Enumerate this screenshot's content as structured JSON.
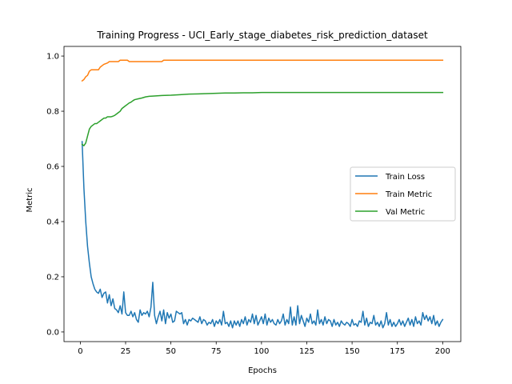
{
  "chart_data": {
    "type": "line",
    "title": "Training Progress - UCI_Early_stage_diabetes_risk_prediction_dataset",
    "xlabel": "Epochs",
    "ylabel": "Metric",
    "xlim": [
      -9,
      210
    ],
    "ylim": [
      -0.035,
      1.035
    ],
    "xticks": [
      0,
      25,
      50,
      75,
      100,
      125,
      150,
      175,
      200
    ],
    "yticks": [
      0.0,
      0.2,
      0.4,
      0.6,
      0.8,
      1.0
    ],
    "ytick_labels": [
      "0.0",
      "0.2",
      "0.4",
      "0.6",
      "0.8",
      "1.0"
    ],
    "grid": false,
    "legend_position": "center-right",
    "series": [
      {
        "name": "Train Loss",
        "color": "#1f77b4",
        "points": [
          [
            1,
            0.69
          ],
          [
            2,
            0.52
          ],
          [
            3,
            0.4
          ],
          [
            4,
            0.31
          ],
          [
            5,
            0.25
          ],
          [
            6,
            0.2
          ],
          [
            7,
            0.175
          ],
          [
            8,
            0.155
          ],
          [
            9,
            0.145
          ],
          [
            10,
            0.14
          ],
          [
            11,
            0.155
          ],
          [
            12,
            0.125
          ],
          [
            13,
            0.14
          ],
          [
            14,
            0.145
          ],
          [
            15,
            0.105
          ],
          [
            16,
            0.135
          ],
          [
            17,
            0.095
          ],
          [
            18,
            0.12
          ],
          [
            19,
            0.085
          ],
          [
            20,
            0.08
          ],
          [
            21,
            0.07
          ],
          [
            22,
            0.095
          ],
          [
            23,
            0.065
          ],
          [
            24,
            0.145
          ],
          [
            25,
            0.07
          ],
          [
            26,
            0.06
          ],
          [
            27,
            0.06
          ],
          [
            28,
            0.075
          ],
          [
            29,
            0.055
          ],
          [
            30,
            0.07
          ],
          [
            31,
            0.045
          ],
          [
            32,
            0.035
          ],
          [
            33,
            0.08
          ],
          [
            34,
            0.06
          ],
          [
            35,
            0.07
          ],
          [
            36,
            0.065
          ],
          [
            37,
            0.075
          ],
          [
            38,
            0.055
          ],
          [
            39,
            0.09
          ],
          [
            40,
            0.18
          ],
          [
            41,
            0.06
          ],
          [
            42,
            0.03
          ],
          [
            43,
            0.055
          ],
          [
            44,
            0.075
          ],
          [
            45,
            0.04
          ],
          [
            46,
            0.08
          ],
          [
            47,
            0.03
          ],
          [
            48,
            0.07
          ],
          [
            49,
            0.05
          ],
          [
            50,
            0.065
          ],
          [
            51,
            0.035
          ],
          [
            52,
            0.04
          ],
          [
            53,
            0.075
          ],
          [
            54,
            0.07
          ],
          [
            55,
            0.065
          ],
          [
            56,
            0.07
          ],
          [
            57,
            0.03
          ],
          [
            58,
            0.045
          ],
          [
            59,
            0.025
          ],
          [
            60,
            0.045
          ],
          [
            61,
            0.04
          ],
          [
            62,
            0.05
          ],
          [
            63,
            0.045
          ],
          [
            64,
            0.04
          ],
          [
            65,
            0.035
          ],
          [
            66,
            0.055
          ],
          [
            67,
            0.03
          ],
          [
            68,
            0.045
          ],
          [
            69,
            0.04
          ],
          [
            70,
            0.025
          ],
          [
            71,
            0.035
          ],
          [
            72,
            0.03
          ],
          [
            73,
            0.045
          ],
          [
            74,
            0.02
          ],
          [
            75,
            0.04
          ],
          [
            76,
            0.03
          ],
          [
            77,
            0.045
          ],
          [
            78,
            0.025
          ],
          [
            79,
            0.075
          ],
          [
            80,
            0.03
          ],
          [
            81,
            0.035
          ],
          [
            82,
            0.02
          ],
          [
            83,
            0.04
          ],
          [
            84,
            0.015
          ],
          [
            85,
            0.04
          ],
          [
            86,
            0.025
          ],
          [
            87,
            0.04
          ],
          [
            88,
            0.02
          ],
          [
            89,
            0.045
          ],
          [
            90,
            0.03
          ],
          [
            91,
            0.055
          ],
          [
            92,
            0.025
          ],
          [
            93,
            0.045
          ],
          [
            94,
            0.035
          ],
          [
            95,
            0.065
          ],
          [
            96,
            0.03
          ],
          [
            97,
            0.06
          ],
          [
            98,
            0.025
          ],
          [
            99,
            0.04
          ],
          [
            100,
            0.055
          ],
          [
            101,
            0.03
          ],
          [
            102,
            0.065
          ],
          [
            103,
            0.025
          ],
          [
            104,
            0.05
          ],
          [
            105,
            0.035
          ],
          [
            106,
            0.045
          ],
          [
            107,
            0.03
          ],
          [
            108,
            0.025
          ],
          [
            109,
            0.045
          ],
          [
            110,
            0.03
          ],
          [
            111,
            0.04
          ],
          [
            112,
            0.065
          ],
          [
            113,
            0.025
          ],
          [
            114,
            0.045
          ],
          [
            115,
            0.03
          ],
          [
            116,
            0.09
          ],
          [
            117,
            0.025
          ],
          [
            118,
            0.055
          ],
          [
            119,
            0.025
          ],
          [
            120,
            0.095
          ],
          [
            121,
            0.03
          ],
          [
            122,
            0.06
          ],
          [
            123,
            0.04
          ],
          [
            124,
            0.02
          ],
          [
            125,
            0.05
          ],
          [
            126,
            0.035
          ],
          [
            127,
            0.065
          ],
          [
            128,
            0.03
          ],
          [
            129,
            0.04
          ],
          [
            130,
            0.025
          ],
          [
            131,
            0.08
          ],
          [
            132,
            0.03
          ],
          [
            133,
            0.045
          ],
          [
            134,
            0.025
          ],
          [
            135,
            0.055
          ],
          [
            136,
            0.03
          ],
          [
            137,
            0.045
          ],
          [
            138,
            0.04
          ],
          [
            139,
            0.02
          ],
          [
            140,
            0.045
          ],
          [
            141,
            0.025
          ],
          [
            142,
            0.035
          ],
          [
            143,
            0.02
          ],
          [
            144,
            0.04
          ],
          [
            145,
            0.03
          ],
          [
            146,
            0.025
          ],
          [
            147,
            0.035
          ],
          [
            148,
            0.03
          ],
          [
            149,
            0.02
          ],
          [
            150,
            0.045
          ],
          [
            151,
            0.025
          ],
          [
            152,
            0.03
          ],
          [
            153,
            0.02
          ],
          [
            154,
            0.04
          ],
          [
            155,
            0.035
          ],
          [
            156,
            0.075
          ],
          [
            157,
            0.025
          ],
          [
            158,
            0.05
          ],
          [
            159,
            0.02
          ],
          [
            160,
            0.035
          ],
          [
            161,
            0.03
          ],
          [
            162,
            0.06
          ],
          [
            163,
            0.025
          ],
          [
            164,
            0.035
          ],
          [
            165,
            0.02
          ],
          [
            166,
            0.04
          ],
          [
            167,
            0.015
          ],
          [
            168,
            0.03
          ],
          [
            169,
            0.07
          ],
          [
            170,
            0.025
          ],
          [
            171,
            0.045
          ],
          [
            172,
            0.02
          ],
          [
            173,
            0.035
          ],
          [
            174,
            0.02
          ],
          [
            175,
            0.03
          ],
          [
            176,
            0.045
          ],
          [
            177,
            0.025
          ],
          [
            178,
            0.04
          ],
          [
            179,
            0.02
          ],
          [
            180,
            0.035
          ],
          [
            181,
            0.05
          ],
          [
            182,
            0.025
          ],
          [
            183,
            0.045
          ],
          [
            184,
            0.02
          ],
          [
            185,
            0.055
          ],
          [
            186,
            0.03
          ],
          [
            187,
            0.04
          ],
          [
            188,
            0.025
          ],
          [
            189,
            0.07
          ],
          [
            190,
            0.045
          ],
          [
            191,
            0.06
          ],
          [
            192,
            0.04
          ],
          [
            193,
            0.055
          ],
          [
            194,
            0.03
          ],
          [
            195,
            0.06
          ],
          [
            196,
            0.025
          ],
          [
            197,
            0.04
          ],
          [
            198,
            0.02
          ],
          [
            199,
            0.035
          ],
          [
            200,
            0.045
          ]
        ]
      },
      {
        "name": "Train Metric",
        "color": "#ff7f0e",
        "points": [
          [
            1,
            0.91
          ],
          [
            2,
            0.915
          ],
          [
            3,
            0.925
          ],
          [
            4,
            0.93
          ],
          [
            5,
            0.945
          ],
          [
            6,
            0.95
          ],
          [
            8,
            0.95
          ],
          [
            10,
            0.95
          ],
          [
            11,
            0.96
          ],
          [
            13,
            0.97
          ],
          [
            15,
            0.975
          ],
          [
            16,
            0.98
          ],
          [
            18,
            0.98
          ],
          [
            20,
            0.98
          ],
          [
            21,
            0.98
          ],
          [
            22,
            0.985
          ],
          [
            24,
            0.985
          ],
          [
            26,
            0.985
          ],
          [
            27,
            0.98
          ],
          [
            30,
            0.98
          ],
          [
            35,
            0.98
          ],
          [
            40,
            0.98
          ],
          [
            45,
            0.98
          ],
          [
            46,
            0.985
          ],
          [
            50,
            0.985
          ],
          [
            75,
            0.985
          ],
          [
            100,
            0.985
          ],
          [
            125,
            0.985
          ],
          [
            150,
            0.985
          ],
          [
            175,
            0.985
          ],
          [
            200,
            0.985
          ]
        ]
      },
      {
        "name": "Val Metric",
        "color": "#2ca02c",
        "points": [
          [
            1,
            0.68
          ],
          [
            2,
            0.675
          ],
          [
            3,
            0.685
          ],
          [
            4,
            0.71
          ],
          [
            5,
            0.735
          ],
          [
            6,
            0.745
          ],
          [
            7,
            0.75
          ],
          [
            8,
            0.755
          ],
          [
            9,
            0.755
          ],
          [
            10,
            0.76
          ],
          [
            11,
            0.765
          ],
          [
            12,
            0.77
          ],
          [
            13,
            0.775
          ],
          [
            14,
            0.775
          ],
          [
            15,
            0.78
          ],
          [
            16,
            0.78
          ],
          [
            17,
            0.78
          ],
          [
            18,
            0.782
          ],
          [
            19,
            0.785
          ],
          [
            20,
            0.79
          ],
          [
            21,
            0.795
          ],
          [
            22,
            0.8
          ],
          [
            23,
            0.81
          ],
          [
            24,
            0.815
          ],
          [
            25,
            0.82
          ],
          [
            26,
            0.825
          ],
          [
            27,
            0.83
          ],
          [
            28,
            0.833
          ],
          [
            29,
            0.838
          ],
          [
            30,
            0.842
          ],
          [
            32,
            0.845
          ],
          [
            34,
            0.848
          ],
          [
            36,
            0.852
          ],
          [
            38,
            0.854
          ],
          [
            40,
            0.855
          ],
          [
            45,
            0.857
          ],
          [
            50,
            0.858
          ],
          [
            55,
            0.86
          ],
          [
            60,
            0.862
          ],
          [
            65,
            0.863
          ],
          [
            70,
            0.864
          ],
          [
            75,
            0.865
          ],
          [
            80,
            0.866
          ],
          [
            85,
            0.866
          ],
          [
            90,
            0.867
          ],
          [
            95,
            0.867
          ],
          [
            100,
            0.868
          ],
          [
            110,
            0.868
          ],
          [
            125,
            0.868
          ],
          [
            150,
            0.868
          ],
          [
            175,
            0.868
          ],
          [
            200,
            0.868
          ]
        ]
      }
    ]
  }
}
